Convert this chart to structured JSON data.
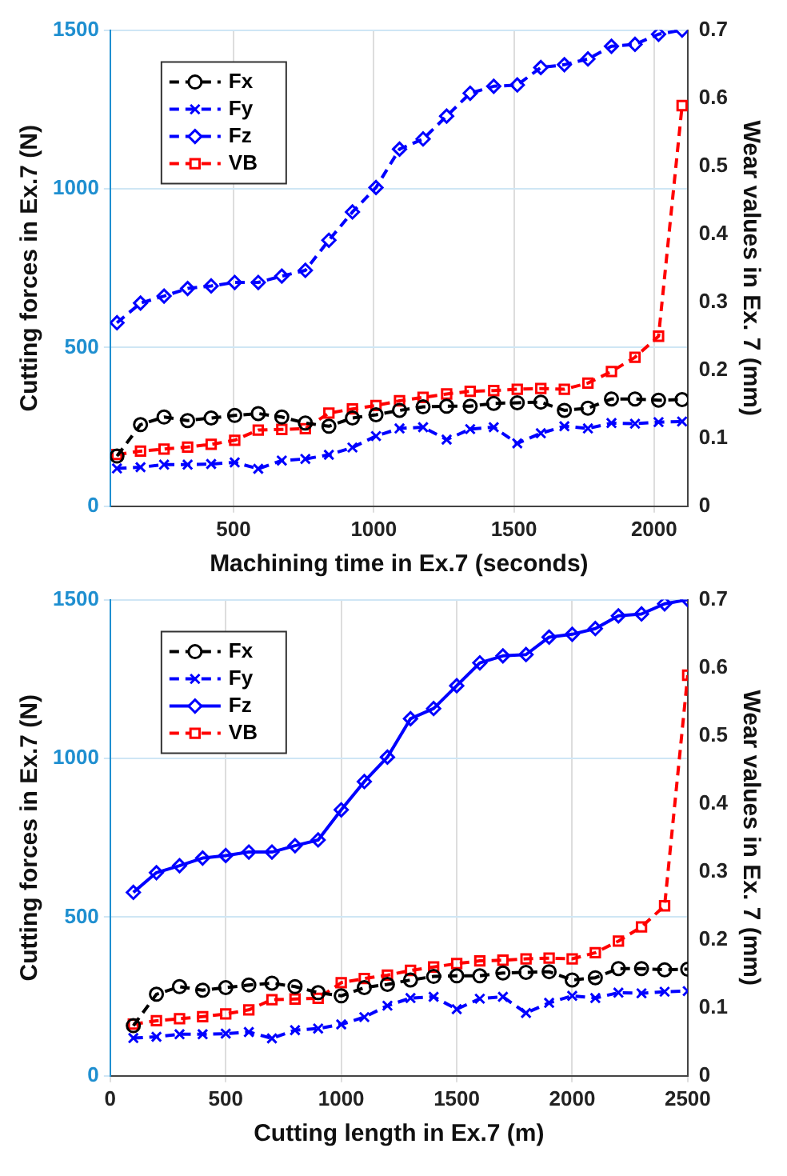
{
  "chart_data": [
    {
      "type": "line",
      "xlabel": "Machining time in Ex.7 (seconds)",
      "ylabel": "Cutting forces in Ex.7 (N)",
      "y2label": "Wear values in Ex. 7 (mm)",
      "x": [
        84,
        168,
        252,
        336,
        420,
        504,
        588,
        672,
        756,
        840,
        924,
        1008,
        1092,
        1176,
        1260,
        1344,
        1428,
        1512,
        1596,
        1680,
        1764,
        1848,
        1932,
        2016,
        2100
      ],
      "xlim": [
        60,
        2120
      ],
      "xticks": [
        500,
        1000,
        1500,
        2000
      ],
      "ylim": [
        0,
        1500
      ],
      "yticks": [
        0,
        500,
        1000,
        1500
      ],
      "y2lim": [
        0,
        0.7
      ],
      "y2ticks": [
        0,
        0.1,
        0.2,
        0.3,
        0.4,
        0.5,
        0.6,
        0.7
      ],
      "grid": true,
      "legend": "top left",
      "series": [
        {
          "name": "Fx",
          "color": "#000000",
          "marker": "circle",
          "line_style": "dashed",
          "values": [
            158,
            257,
            281,
            270,
            278,
            286,
            292,
            281,
            262,
            252,
            278,
            288,
            302,
            313,
            315,
            315,
            324,
            326,
            328,
            302,
            309,
            338,
            338,
            334,
            336
          ]
        },
        {
          "name": "Fy",
          "color": "#0000ff",
          "marker": "cross",
          "line_style": "dashed",
          "values": [
            119,
            123,
            131,
            131,
            133,
            138,
            118,
            144,
            149,
            162,
            185,
            221,
            245,
            249,
            210,
            243,
            249,
            198,
            230,
            252,
            245,
            262,
            260,
            265,
            267
          ]
        },
        {
          "name": "Fz",
          "color": "#0000ff",
          "marker": "diamond",
          "line_style": "dashed",
          "values": [
            578,
            640,
            662,
            686,
            694,
            705,
            705,
            725,
            743,
            838,
            927,
            1004,
            1125,
            1157,
            1229,
            1301,
            1323,
            1327,
            1382,
            1391,
            1409,
            1449,
            1455,
            1487,
            1500
          ]
        },
        {
          "name": "VB",
          "color": "#ff0000",
          "marker": "square",
          "line_style": "dashed",
          "axis": "y2",
          "values": [
            0.076,
            0.081,
            0.084,
            0.087,
            0.091,
            0.097,
            0.112,
            0.113,
            0.114,
            0.137,
            0.143,
            0.148,
            0.155,
            0.16,
            0.165,
            0.169,
            0.17,
            0.172,
            0.173,
            0.172,
            0.181,
            0.198,
            0.219,
            0.25,
            0.589
          ]
        }
      ]
    },
    {
      "type": "line",
      "xlabel": "Cutting length in Ex.7 (m)",
      "ylabel": "Cutting forces in Ex.7 (N)",
      "y2label": "Wear values in Ex. 7 (mm)",
      "x": [
        100,
        200,
        300,
        400,
        500,
        600,
        700,
        800,
        900,
        1000,
        1100,
        1200,
        1300,
        1400,
        1500,
        1600,
        1700,
        1800,
        1900,
        2000,
        2100,
        2200,
        2300,
        2400,
        2500
      ],
      "xlim": [
        0,
        2500
      ],
      "xticks": [
        0,
        500,
        1000,
        1500,
        2000,
        2500
      ],
      "ylim": [
        0,
        1500
      ],
      "yticks": [
        0,
        500,
        1000,
        1500
      ],
      "y2lim": [
        0,
        0.7
      ],
      "y2ticks": [
        0,
        0.1,
        0.2,
        0.3,
        0.4,
        0.5,
        0.6,
        0.7
      ],
      "grid": true,
      "legend": "top left",
      "series": [
        {
          "name": "Fx",
          "color": "#000000",
          "marker": "circle",
          "line_style": "dashed",
          "values": [
            158,
            257,
            281,
            270,
            278,
            286,
            292,
            281,
            262,
            252,
            278,
            288,
            302,
            313,
            315,
            315,
            324,
            326,
            328,
            302,
            309,
            338,
            338,
            334,
            336
          ]
        },
        {
          "name": "Fy",
          "color": "#0000ff",
          "marker": "cross",
          "line_style": "dashed",
          "values": [
            119,
            123,
            131,
            131,
            133,
            138,
            118,
            144,
            149,
            162,
            185,
            221,
            245,
            249,
            210,
            243,
            249,
            198,
            230,
            252,
            245,
            262,
            260,
            265,
            267
          ]
        },
        {
          "name": "Fz",
          "color": "#0000ff",
          "marker": "diamond",
          "line_style": "solid",
          "values": [
            578,
            640,
            662,
            686,
            694,
            705,
            705,
            725,
            743,
            838,
            927,
            1004,
            1125,
            1157,
            1229,
            1301,
            1323,
            1327,
            1382,
            1391,
            1409,
            1449,
            1455,
            1487,
            1500
          ]
        },
        {
          "name": "VB",
          "color": "#ff0000",
          "marker": "square",
          "line_style": "dashed",
          "axis": "y2",
          "values": [
            0.076,
            0.081,
            0.084,
            0.087,
            0.091,
            0.097,
            0.112,
            0.113,
            0.114,
            0.137,
            0.143,
            0.148,
            0.155,
            0.16,
            0.165,
            0.169,
            0.17,
            0.172,
            0.173,
            0.172,
            0.181,
            0.198,
            0.219,
            0.25,
            0.589
          ]
        }
      ]
    }
  ]
}
